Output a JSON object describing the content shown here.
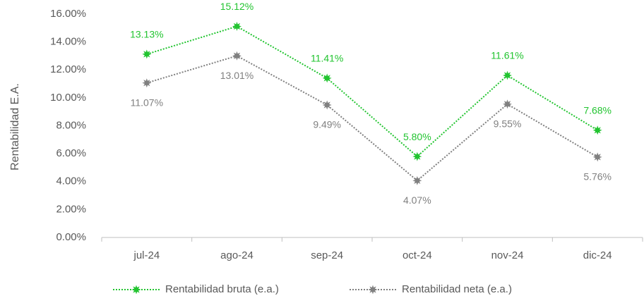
{
  "chart_data": {
    "type": "line",
    "y_label": "Rentabilidad E.A.",
    "categories": [
      "jul-24",
      "ago-24",
      "sep-24",
      "oct-24",
      "nov-24",
      "dic-24"
    ],
    "series": [
      {
        "name": "Rentabilidad bruta (e.a.)",
        "color": "#22c430",
        "values": [
          13.13,
          15.12,
          11.41,
          5.8,
          11.61,
          7.68
        ],
        "value_labels": [
          "13.13%",
          "15.12%",
          "11.41%",
          "5.80%",
          "11.61%",
          "7.68%"
        ]
      },
      {
        "name": "Rentabilidad neta (e.a.)",
        "color": "#808080",
        "values": [
          11.07,
          13.01,
          9.49,
          4.07,
          9.55,
          5.76
        ],
        "value_labels": [
          "11.07%",
          "13.01%",
          "9.49%",
          "4.07%",
          "9.55%",
          "5.76%"
        ]
      }
    ],
    "ylim": [
      0,
      16
    ],
    "yticks": [
      {
        "value": 0,
        "label": "0.00%"
      },
      {
        "value": 2,
        "label": "2.00%"
      },
      {
        "value": 4,
        "label": "4.00%"
      },
      {
        "value": 6,
        "label": "6.00%"
      },
      {
        "value": 8,
        "label": "8.00%"
      },
      {
        "value": 10,
        "label": "10.00%"
      },
      {
        "value": 12,
        "label": "12.00%"
      },
      {
        "value": 14,
        "label": "14.00%"
      },
      {
        "value": 16,
        "label": "16.00%"
      }
    ],
    "legend": "bottom"
  }
}
